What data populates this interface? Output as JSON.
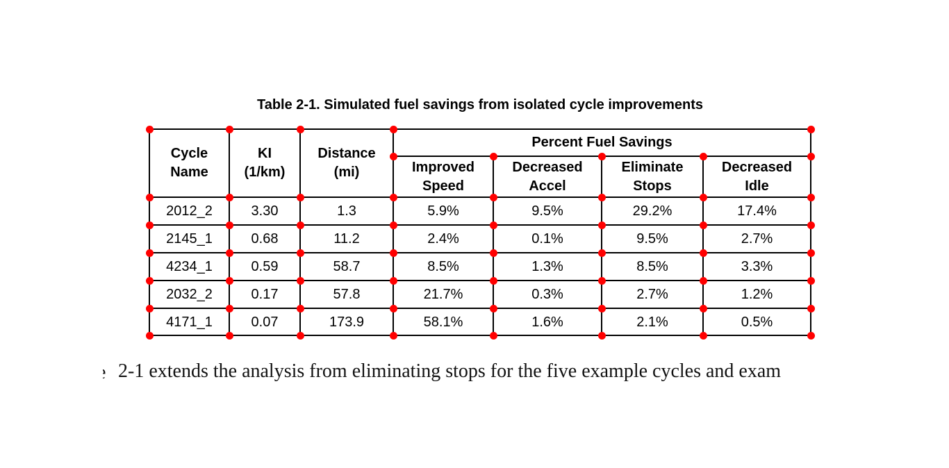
{
  "title": "Table 2-1. Simulated fuel savings from isolated cycle improvements",
  "table": {
    "headers": {
      "cycle_name": "Cycle\nName",
      "ki": "KI\n(1/km)",
      "distance": "Distance\n(mi)",
      "percent_fuel_savings": "Percent Fuel Savings",
      "improved_speed": "Improved\nSpeed",
      "decreased_accel": "Decreased\nAccel",
      "eliminate_stops": "Eliminate\nStops",
      "decreased_idle": "Decreased\nIdle"
    },
    "rows": [
      [
        "2012_2",
        "3.30",
        "1.3",
        "5.9%",
        "9.5%",
        "29.2%",
        "17.4%"
      ],
      [
        "2145_1",
        "0.68",
        "11.2",
        "2.4%",
        "0.1%",
        "9.5%",
        "2.7%"
      ],
      [
        "4234_1",
        "0.59",
        "58.7",
        "8.5%",
        "1.3%",
        "8.5%",
        "3.3%"
      ],
      [
        "2032_2",
        "0.17",
        "57.8",
        "21.7%",
        "0.3%",
        "2.7%",
        "1.2%"
      ],
      [
        "4171_1",
        "0.07",
        "173.9",
        "58.1%",
        "1.6%",
        "2.1%",
        "0.5%"
      ]
    ]
  },
  "annotation": {
    "marker_color": "#ff0000",
    "marker_meaning": "table-cell-corner-dot"
  },
  "body_text": {
    "clipped_left_fragment": "e",
    "line": "2-1 extends the analysis from eliminating stops for the five example cycles and exam"
  }
}
